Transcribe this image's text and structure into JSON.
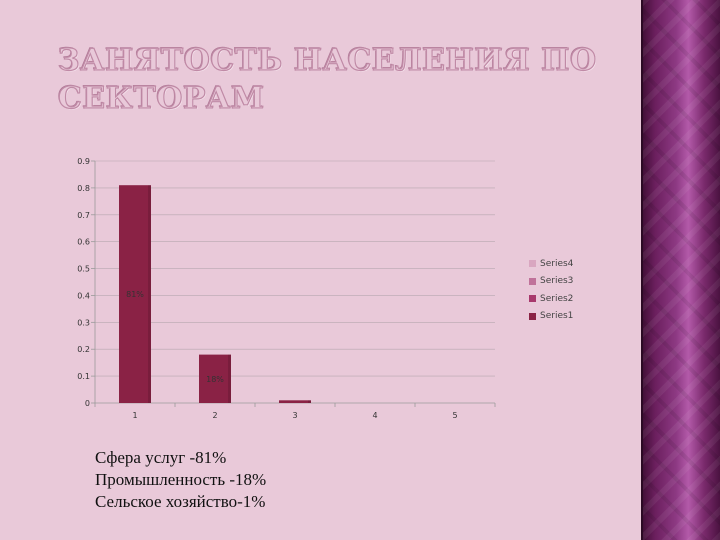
{
  "title": {
    "line1": "ЗАНЯТОСТЬ НАСЕЛЕНИЯ ПО",
    "line2": "СЕКТОРАМ"
  },
  "caption": {
    "lines": [
      "Сфера услуг -81%",
      "Промышленность -18%",
      "Сельское хозяйство-1%"
    ]
  },
  "legend": {
    "items": [
      {
        "name": "Series4",
        "color": "#d9a6c0"
      },
      {
        "name": "Series3",
        "color": "#c0729a"
      },
      {
        "name": "Series2",
        "color": "#a8386c"
      },
      {
        "name": "Series1",
        "color": "#8a2245"
      }
    ]
  },
  "chart_data": {
    "type": "bar",
    "categories": [
      "1",
      "2",
      "3",
      "4",
      "5"
    ],
    "ylim": [
      0,
      0.9
    ],
    "yticks": [
      "0",
      "0.1",
      "0.2",
      "0.3",
      "0.4",
      "0.5",
      "0.6",
      "0.7",
      "0.8",
      "0.9"
    ],
    "series": [
      {
        "name": "Series1",
        "values": [
          0.81,
          0.18,
          0.01,
          null,
          null
        ],
        "color": "#8a2245"
      },
      {
        "name": "Series2",
        "values": [
          null,
          null,
          null,
          null,
          null
        ],
        "color": "#a8386c"
      },
      {
        "name": "Series3",
        "values": [
          null,
          null,
          null,
          null,
          null
        ],
        "color": "#c0729a"
      },
      {
        "name": "Series4",
        "values": [
          null,
          null,
          null,
          null,
          null
        ],
        "color": "#d9a6c0"
      }
    ],
    "data_labels": [
      "81%",
      "18%",
      "",
      "",
      ""
    ],
    "grid": true,
    "legend_position": "right"
  },
  "colors": {
    "background": "#e9c9d9",
    "bar": "#8a2245",
    "axis": "#9a9a9a",
    "grid": "#b8a8b0"
  }
}
